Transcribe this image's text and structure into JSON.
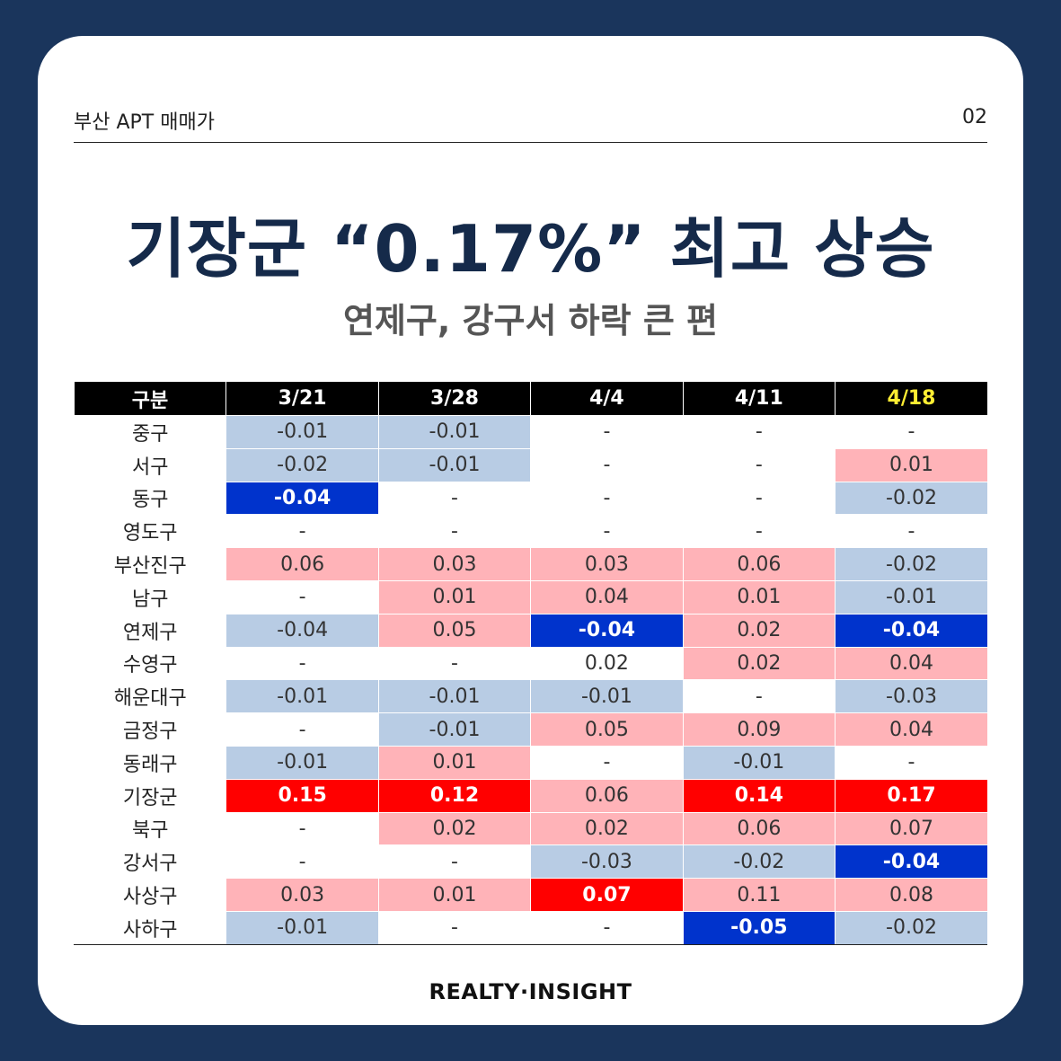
{
  "header": {
    "left": "부산 APT 매매가",
    "right": "02"
  },
  "title": "기장군 “0.17%” 최고 상승",
  "subtitle": "연제구, 강구서 하락 큰 편",
  "table": {
    "columns": [
      "구분",
      "3/21",
      "3/28",
      "4/4",
      "4/11",
      "4/18"
    ],
    "rows": [
      {
        "name": "중구",
        "cells": [
          {
            "v": "-0.01",
            "c": "lb"
          },
          {
            "v": "-0.01",
            "c": "lb"
          },
          {
            "v": "-",
            "c": ""
          },
          {
            "v": "-",
            "c": ""
          },
          {
            "v": "-",
            "c": ""
          }
        ]
      },
      {
        "name": "서구",
        "cells": [
          {
            "v": "-0.02",
            "c": "lb"
          },
          {
            "v": "-0.01",
            "c": "lb"
          },
          {
            "v": "-",
            "c": ""
          },
          {
            "v": "-",
            "c": ""
          },
          {
            "v": "0.01",
            "c": "pk"
          }
        ]
      },
      {
        "name": "동구",
        "cells": [
          {
            "v": "-0.04",
            "c": "db"
          },
          {
            "v": "-",
            "c": ""
          },
          {
            "v": "-",
            "c": ""
          },
          {
            "v": "-",
            "c": ""
          },
          {
            "v": "-0.02",
            "c": "lb"
          }
        ]
      },
      {
        "name": "영도구",
        "cells": [
          {
            "v": "-",
            "c": ""
          },
          {
            "v": "-",
            "c": ""
          },
          {
            "v": "-",
            "c": ""
          },
          {
            "v": "-",
            "c": ""
          },
          {
            "v": "-",
            "c": ""
          }
        ]
      },
      {
        "name": "부산진구",
        "cells": [
          {
            "v": "0.06",
            "c": "pk"
          },
          {
            "v": "0.03",
            "c": "pk"
          },
          {
            "v": "0.03",
            "c": "pk"
          },
          {
            "v": "0.06",
            "c": "pk"
          },
          {
            "v": "-0.02",
            "c": "lb"
          }
        ]
      },
      {
        "name": "남구",
        "cells": [
          {
            "v": "-",
            "c": ""
          },
          {
            "v": "0.01",
            "c": "pk"
          },
          {
            "v": "0.04",
            "c": "pk"
          },
          {
            "v": "0.01",
            "c": "pk"
          },
          {
            "v": "-0.01",
            "c": "lb"
          }
        ]
      },
      {
        "name": "연제구",
        "cells": [
          {
            "v": "-0.04",
            "c": "lb"
          },
          {
            "v": "0.05",
            "c": "pk"
          },
          {
            "v": "-0.04",
            "c": "db"
          },
          {
            "v": "0.02",
            "c": "pk"
          },
          {
            "v": "-0.04",
            "c": "db"
          }
        ]
      },
      {
        "name": "수영구",
        "cells": [
          {
            "v": "-",
            "c": ""
          },
          {
            "v": "-",
            "c": ""
          },
          {
            "v": "0.02",
            "c": ""
          },
          {
            "v": "0.02",
            "c": "pk"
          },
          {
            "v": "0.04",
            "c": "pk"
          }
        ]
      },
      {
        "name": "해운대구",
        "cells": [
          {
            "v": "-0.01",
            "c": "lb"
          },
          {
            "v": "-0.01",
            "c": "lb"
          },
          {
            "v": "-0.01",
            "c": "lb"
          },
          {
            "v": "-",
            "c": ""
          },
          {
            "v": "-0.03",
            "c": "lb"
          }
        ]
      },
      {
        "name": "금정구",
        "cells": [
          {
            "v": "-",
            "c": ""
          },
          {
            "v": "-0.01",
            "c": "lb"
          },
          {
            "v": "0.05",
            "c": "pk"
          },
          {
            "v": "0.09",
            "c": "pk"
          },
          {
            "v": "0.04",
            "c": "pk"
          }
        ]
      },
      {
        "name": "동래구",
        "cells": [
          {
            "v": "-0.01",
            "c": "lb"
          },
          {
            "v": "0.01",
            "c": "pk"
          },
          {
            "v": "-",
            "c": ""
          },
          {
            "v": "-0.01",
            "c": "lb"
          },
          {
            "v": "-",
            "c": ""
          }
        ]
      },
      {
        "name": "기장군",
        "cells": [
          {
            "v": "0.15",
            "c": "rd"
          },
          {
            "v": "0.12",
            "c": "rd"
          },
          {
            "v": "0.06",
            "c": "pk"
          },
          {
            "v": "0.14",
            "c": "rd"
          },
          {
            "v": "0.17",
            "c": "rd"
          }
        ]
      },
      {
        "name": "북구",
        "cells": [
          {
            "v": "-",
            "c": ""
          },
          {
            "v": "0.02",
            "c": "pk"
          },
          {
            "v": "0.02",
            "c": "pk"
          },
          {
            "v": "0.06",
            "c": "pk"
          },
          {
            "v": "0.07",
            "c": "pk"
          }
        ]
      },
      {
        "name": "강서구",
        "cells": [
          {
            "v": "-",
            "c": ""
          },
          {
            "v": "-",
            "c": ""
          },
          {
            "v": "-0.03",
            "c": "lb"
          },
          {
            "v": "-0.02",
            "c": "lb"
          },
          {
            "v": "-0.04",
            "c": "db"
          }
        ]
      },
      {
        "name": "사상구",
        "cells": [
          {
            "v": "0.03",
            "c": "pk"
          },
          {
            "v": "0.01",
            "c": "pk"
          },
          {
            "v": "0.07",
            "c": "rd"
          },
          {
            "v": "0.11",
            "c": "pk"
          },
          {
            "v": "0.08",
            "c": "pk"
          }
        ]
      },
      {
        "name": "사하구",
        "cells": [
          {
            "v": "-0.01",
            "c": "lb"
          },
          {
            "v": "-",
            "c": ""
          },
          {
            "v": "-",
            "c": ""
          },
          {
            "v": "-0.05",
            "c": "db"
          },
          {
            "v": "-0.02",
            "c": "lb"
          }
        ]
      }
    ]
  },
  "colors": {
    "background": "#1a355c",
    "title": "#152a4a",
    "light_blue": "#b8cce4",
    "pink": "#ffb3b8",
    "dark_blue": "#0033cc",
    "red": "#ff0000",
    "highlight_header": "#ffee33"
  },
  "footer": "REALTY·INSIGHT"
}
